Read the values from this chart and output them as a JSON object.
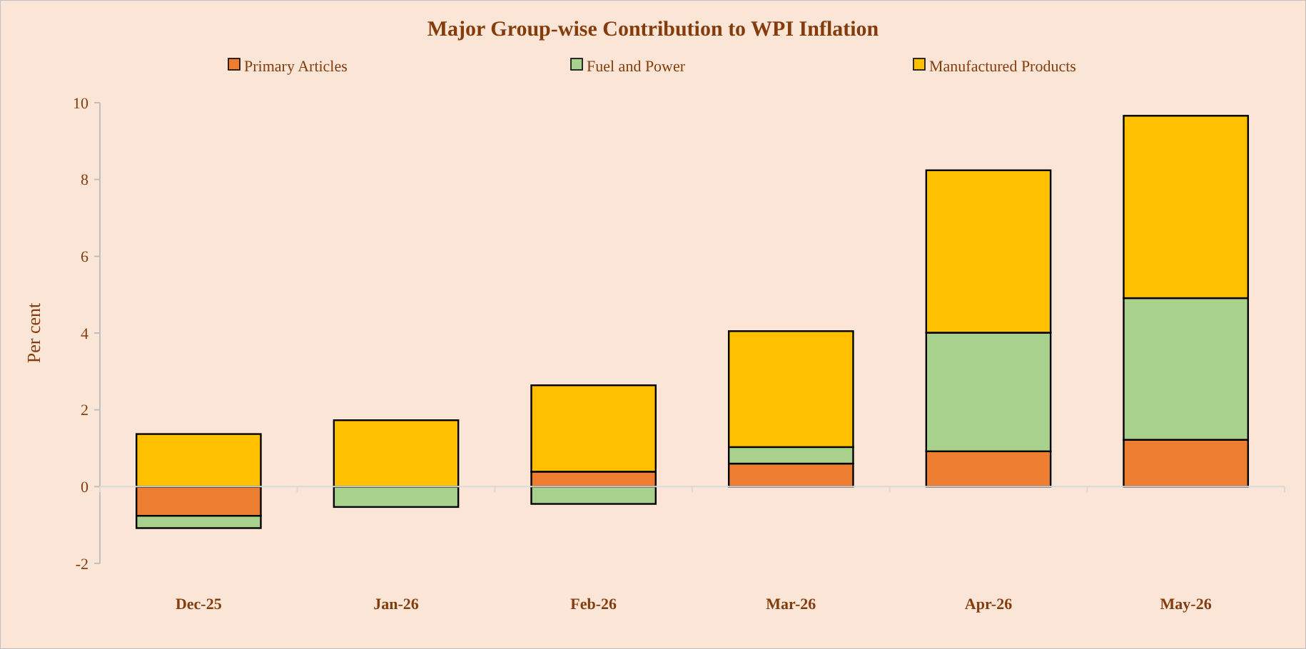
{
  "chart_data": {
    "type": "bar",
    "title": "Major Group-wise Contribution to WPI Inflation",
    "ylabel": "Per cent",
    "stacked": true,
    "categories": [
      "Dec-25",
      "Jan-26",
      "Feb-26",
      "Mar-26",
      "Apr-26",
      "May-26"
    ],
    "series": [
      {
        "name": "Primary Articles",
        "color": "#ed7d31",
        "values": [
          -0.76,
          0,
          0.39,
          0.6,
          0.92,
          1.22
        ]
      },
      {
        "name": "Fuel and Power",
        "color": "#a9d18e",
        "values": [
          -0.32,
          -0.53,
          -0.45,
          0.43,
          3.09,
          3.69
        ]
      },
      {
        "name": "Manufactured Products",
        "color": "#ffc000",
        "values": [
          1.37,
          1.73,
          2.25,
          3.02,
          4.23,
          4.75
        ]
      }
    ],
    "ylim": [
      -2,
      10
    ],
    "yticks": [
      -2,
      0,
      2,
      4,
      6,
      8,
      10
    ],
    "legend": "top"
  }
}
